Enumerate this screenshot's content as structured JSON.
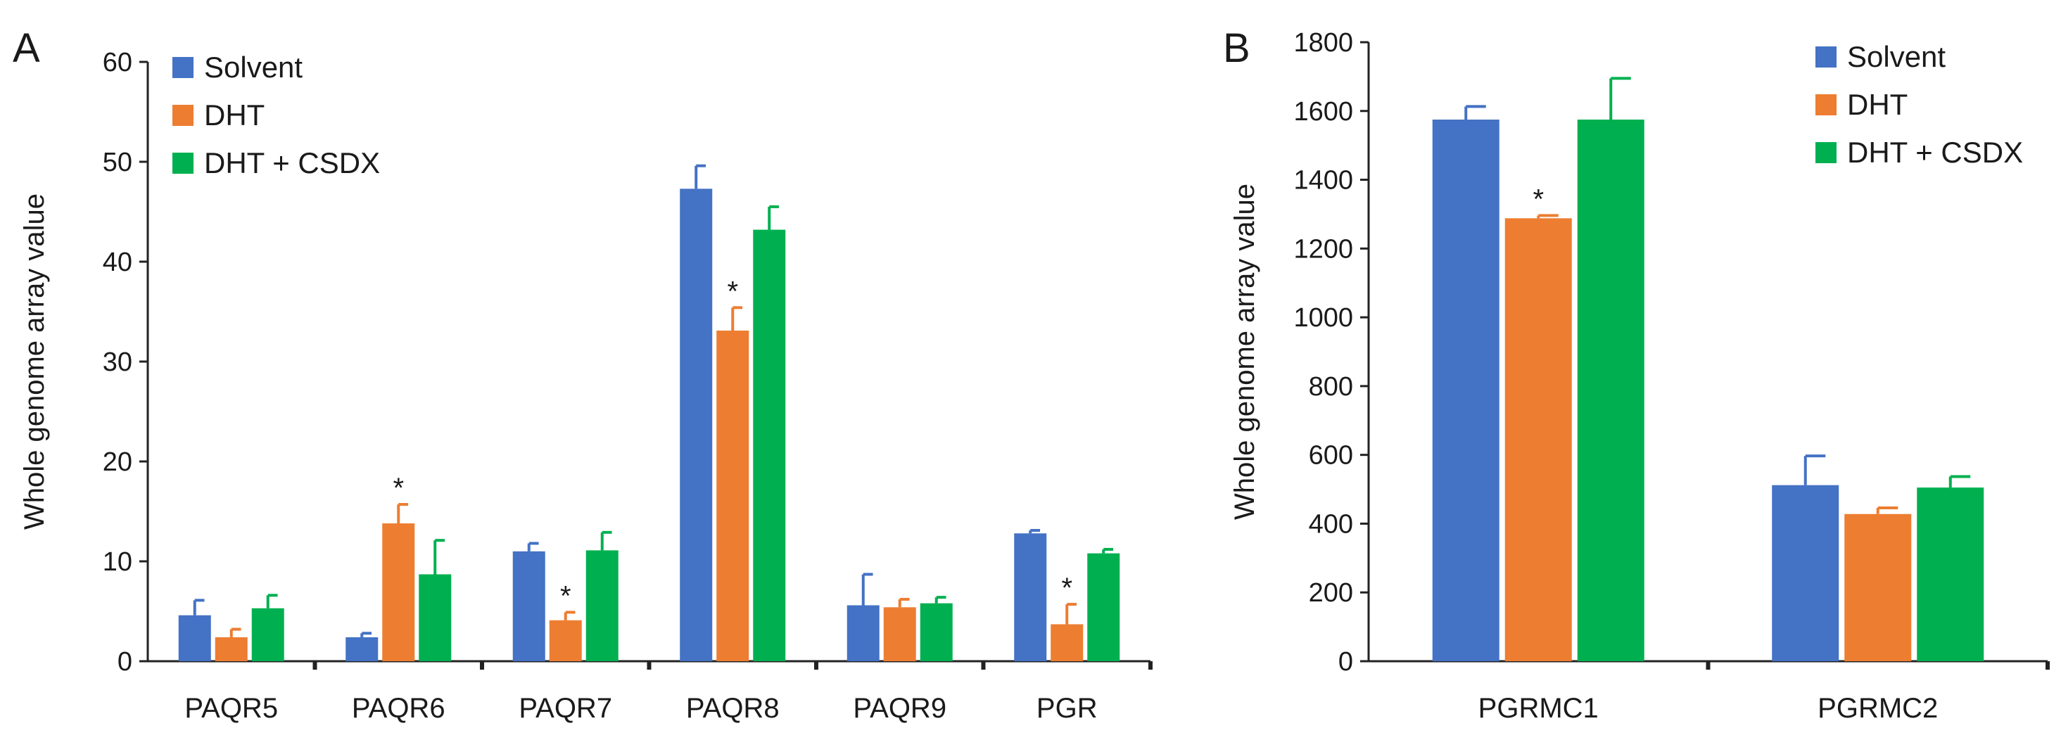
{
  "panel_labels": [
    "A",
    "B"
  ],
  "colors": {
    "Solvent": "#4472c4",
    "DHT": "#ed7d31",
    "DHT + CSDX": "#00b050"
  },
  "chart_data": [
    {
      "type": "bar",
      "panel": "A",
      "title": "",
      "xlabel": "",
      "ylabel": "Whole genome array value",
      "ylim": [
        0,
        60
      ],
      "yticks": [
        0,
        10,
        20,
        30,
        40,
        50,
        60
      ],
      "grid": false,
      "legend": "top-left",
      "categories": [
        "PAQR5",
        "PAQR6",
        "PAQR7",
        "PAQR8",
        "PAQR9",
        "PGR"
      ],
      "series": [
        {
          "name": "Solvent",
          "values": [
            4.6,
            2.4,
            11.0,
            47.3,
            5.6,
            12.8
          ],
          "errors": [
            1.5,
            0.4,
            0.8,
            2.3,
            3.1,
            0.3
          ]
        },
        {
          "name": "DHT",
          "values": [
            2.4,
            13.8,
            4.1,
            33.1,
            5.4,
            3.7
          ],
          "errors": [
            0.8,
            1.9,
            0.8,
            2.3,
            0.8,
            2.0
          ]
        },
        {
          "name": "DHT + CSDX",
          "values": [
            5.3,
            8.7,
            11.1,
            43.2,
            5.8,
            10.8
          ],
          "errors": [
            1.3,
            3.4,
            1.8,
            2.3,
            0.6,
            0.4
          ]
        }
      ],
      "significance": [
        {
          "category": "PAQR6",
          "series": "DHT",
          "label": "*"
        },
        {
          "category": "PAQR7",
          "series": "DHT",
          "label": "*"
        },
        {
          "category": "PAQR8",
          "series": "DHT",
          "label": "*"
        },
        {
          "category": "PGR",
          "series": "DHT",
          "label": "*"
        }
      ]
    },
    {
      "type": "bar",
      "panel": "B",
      "title": "",
      "xlabel": "",
      "ylabel": "Whole genome array value",
      "ylim": [
        0,
        1800
      ],
      "yticks": [
        0,
        200,
        400,
        600,
        800,
        1000,
        1200,
        1400,
        1600,
        1800
      ],
      "grid": false,
      "legend": "top-right",
      "categories": [
        "PGRMC1",
        "PGRMC2"
      ],
      "series": [
        {
          "name": "Solvent",
          "values": [
            1575,
            512
          ],
          "errors": [
            38,
            85
          ]
        },
        {
          "name": "DHT",
          "values": [
            1288,
            428
          ],
          "errors": [
            8,
            18
          ]
        },
        {
          "name": "DHT + CSDX",
          "values": [
            1575,
            505
          ],
          "errors": [
            120,
            32
          ]
        }
      ],
      "significance": [
        {
          "category": "PGRMC1",
          "series": "DHT",
          "label": "*"
        }
      ]
    }
  ]
}
